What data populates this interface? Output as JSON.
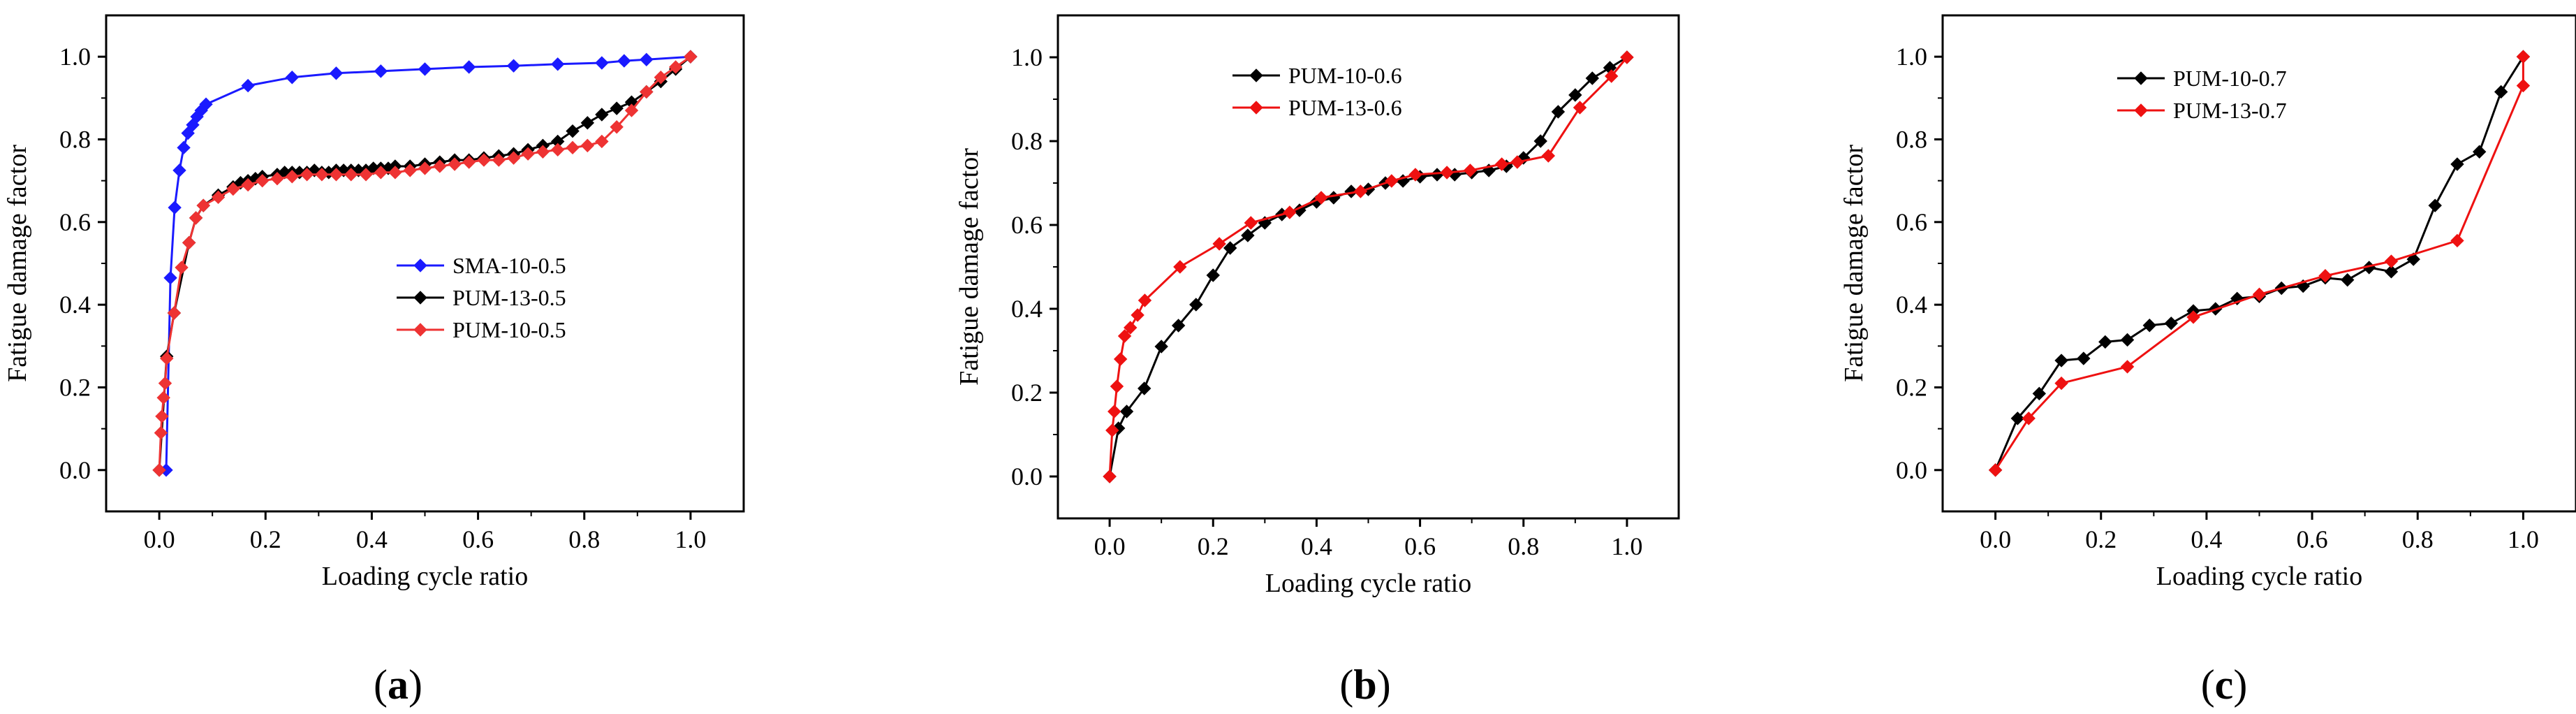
{
  "chart_data": [
    {
      "type": "line",
      "panel": "a",
      "xlabel": "Loading cycle ratio",
      "ylabel": "Fatigue damage factor",
      "xlim": [
        -0.1,
        1.1
      ],
      "ylim": [
        -0.1,
        1.1
      ],
      "xticks": [
        0.0,
        0.2,
        0.4,
        0.6,
        0.8,
        1.0
      ],
      "yticks": [
        0.0,
        0.2,
        0.4,
        0.6,
        0.8,
        1.0
      ],
      "tick_labels_x": [
        "0.0",
        "0.2",
        "0.4",
        "0.6",
        "0.8",
        "1.0"
      ],
      "tick_labels_y": [
        "0.0",
        "0.2",
        "0.4",
        "0.6",
        "0.8",
        "1.0"
      ],
      "legend_position": "center-right",
      "series": [
        {
          "name": "SMA-10-0.5",
          "color": "#1a1aff",
          "x": [
            0.013,
            0.021,
            0.029,
            0.038,
            0.046,
            0.054,
            0.063,
            0.071,
            0.079,
            0.088,
            0.167,
            0.25,
            0.333,
            0.417,
            0.5,
            0.583,
            0.667,
            0.75,
            0.833,
            0.875,
            0.917,
            1.0
          ],
          "y": [
            0.0,
            0.465,
            0.635,
            0.725,
            0.78,
            0.815,
            0.835,
            0.855,
            0.87,
            0.885,
            0.93,
            0.95,
            0.96,
            0.965,
            0.97,
            0.975,
            0.978,
            0.982,
            0.985,
            0.99,
            0.993,
            1.0
          ]
        },
        {
          "name": "PUM-13-0.5",
          "color": "#000000",
          "x": [
            0.0,
            0.014,
            0.028,
            0.056,
            0.069,
            0.083,
            0.111,
            0.139,
            0.153,
            0.167,
            0.181,
            0.194,
            0.222,
            0.236,
            0.25,
            0.264,
            0.278,
            0.292,
            0.306,
            0.319,
            0.333,
            0.347,
            0.361,
            0.375,
            0.389,
            0.403,
            0.417,
            0.431,
            0.444,
            0.472,
            0.5,
            0.528,
            0.556,
            0.583,
            0.611,
            0.639,
            0.667,
            0.694,
            0.722,
            0.75,
            0.778,
            0.806,
            0.833,
            0.861,
            0.889,
            0.917,
            0.944,
            0.972,
            1.0
          ],
          "y": [
            0.0,
            0.275,
            0.38,
            0.55,
            0.61,
            0.64,
            0.665,
            0.685,
            0.695,
            0.7,
            0.705,
            0.71,
            0.715,
            0.72,
            0.72,
            0.72,
            0.72,
            0.725,
            0.72,
            0.72,
            0.725,
            0.725,
            0.725,
            0.725,
            0.725,
            0.73,
            0.73,
            0.73,
            0.735,
            0.735,
            0.74,
            0.745,
            0.75,
            0.75,
            0.755,
            0.76,
            0.765,
            0.775,
            0.785,
            0.795,
            0.82,
            0.84,
            0.86,
            0.875,
            0.89,
            0.915,
            0.94,
            0.97,
            1.0
          ]
        },
        {
          "name": "PUM-10-0.5",
          "color": "#ee3333",
          "x": [
            0.0,
            0.003,
            0.005,
            0.008,
            0.011,
            0.014,
            0.028,
            0.042,
            0.056,
            0.069,
            0.083,
            0.111,
            0.139,
            0.167,
            0.194,
            0.222,
            0.25,
            0.278,
            0.306,
            0.333,
            0.361,
            0.389,
            0.417,
            0.444,
            0.472,
            0.5,
            0.528,
            0.556,
            0.583,
            0.611,
            0.639,
            0.667,
            0.694,
            0.722,
            0.75,
            0.778,
            0.806,
            0.833,
            0.861,
            0.889,
            0.917,
            0.944,
            0.972,
            1.0
          ],
          "y": [
            0.0,
            0.09,
            0.13,
            0.175,
            0.21,
            0.27,
            0.38,
            0.49,
            0.55,
            0.61,
            0.64,
            0.66,
            0.68,
            0.69,
            0.7,
            0.705,
            0.71,
            0.715,
            0.715,
            0.715,
            0.715,
            0.715,
            0.72,
            0.72,
            0.725,
            0.73,
            0.735,
            0.74,
            0.745,
            0.75,
            0.75,
            0.755,
            0.765,
            0.77,
            0.775,
            0.78,
            0.785,
            0.795,
            0.83,
            0.87,
            0.915,
            0.95,
            0.975,
            1.0
          ]
        }
      ]
    },
    {
      "type": "line",
      "panel": "b",
      "xlabel": "Loading cycle ratio",
      "ylabel": "Fatigue damage factor",
      "xlim": [
        -0.1,
        1.1
      ],
      "ylim": [
        -0.1,
        1.1
      ],
      "xticks": [
        0.0,
        0.2,
        0.4,
        0.6,
        0.8,
        1.0
      ],
      "yticks": [
        0.0,
        0.2,
        0.4,
        0.6,
        0.8,
        1.0
      ],
      "tick_labels_x": [
        "0.0",
        "0.2",
        "0.4",
        "0.6",
        "0.8",
        "1.0"
      ],
      "tick_labels_y": [
        "0.0",
        "0.2",
        "0.4",
        "0.6",
        "0.8",
        "1.0"
      ],
      "legend_position": "top-left",
      "series": [
        {
          "name": "PUM-10-0.6",
          "color": "#000000",
          "x": [
            0.0,
            0.017,
            0.033,
            0.067,
            0.1,
            0.133,
            0.167,
            0.2,
            0.233,
            0.267,
            0.3,
            0.333,
            0.367,
            0.4,
            0.433,
            0.467,
            0.5,
            0.533,
            0.567,
            0.6,
            0.633,
            0.667,
            0.7,
            0.733,
            0.767,
            0.8,
            0.833,
            0.867,
            0.9,
            0.933,
            0.967,
            1.0
          ],
          "y": [
            0.0,
            0.115,
            0.155,
            0.21,
            0.31,
            0.36,
            0.41,
            0.48,
            0.545,
            0.575,
            0.605,
            0.625,
            0.635,
            0.655,
            0.665,
            0.68,
            0.685,
            0.7,
            0.705,
            0.715,
            0.72,
            0.72,
            0.725,
            0.73,
            0.74,
            0.76,
            0.8,
            0.87,
            0.91,
            0.95,
            0.975,
            1.0
          ]
        },
        {
          "name": "PUM-13-0.6",
          "color": "#ee1111",
          "x": [
            0.0,
            0.005,
            0.009,
            0.014,
            0.021,
            0.029,
            0.04,
            0.054,
            0.068,
            0.136,
            0.212,
            0.273,
            0.348,
            0.409,
            0.485,
            0.545,
            0.591,
            0.652,
            0.697,
            0.758,
            0.788,
            0.848,
            0.909,
            0.97,
            1.0
          ],
          "y": [
            0.0,
            0.11,
            0.155,
            0.215,
            0.28,
            0.335,
            0.355,
            0.385,
            0.42,
            0.5,
            0.555,
            0.605,
            0.63,
            0.665,
            0.68,
            0.705,
            0.72,
            0.725,
            0.73,
            0.745,
            0.75,
            0.765,
            0.88,
            0.955,
            1.0
          ]
        }
      ]
    },
    {
      "type": "line",
      "panel": "c",
      "xlabel": "Loading cycle ratio",
      "ylabel": "Fatigue damage factor",
      "xlim": [
        -0.1,
        1.1
      ],
      "ylim": [
        -0.1,
        1.1
      ],
      "xticks": [
        0.0,
        0.2,
        0.4,
        0.6,
        0.8,
        1.0
      ],
      "yticks": [
        0.0,
        0.2,
        0.4,
        0.6,
        0.8,
        1.0
      ],
      "tick_labels_x": [
        "0.0",
        "0.2",
        "0.4",
        "0.6",
        "0.8",
        "1.0"
      ],
      "tick_labels_y": [
        "0.0",
        "0.2",
        "0.4",
        "0.6",
        "0.8",
        "1.0"
      ],
      "legend_position": "top-left",
      "series": [
        {
          "name": "PUM-10-0.7",
          "color": "#000000",
          "x": [
            0.0,
            0.042,
            0.083,
            0.125,
            0.167,
            0.208,
            0.25,
            0.292,
            0.333,
            0.375,
            0.417,
            0.458,
            0.5,
            0.542,
            0.583,
            0.625,
            0.667,
            0.708,
            0.75,
            0.792,
            0.833,
            0.875,
            0.917,
            0.958,
            1.0
          ],
          "y": [
            0.0,
            0.125,
            0.185,
            0.265,
            0.27,
            0.31,
            0.315,
            0.35,
            0.355,
            0.385,
            0.39,
            0.415,
            0.42,
            0.44,
            0.445,
            0.465,
            0.46,
            0.49,
            0.48,
            0.51,
            0.64,
            0.74,
            0.77,
            0.915,
            1.0
          ]
        },
        {
          "name": "PUM-13-0.7",
          "color": "#ee1111",
          "x": [
            0.0,
            0.063,
            0.125,
            0.25,
            0.375,
            0.5,
            0.625,
            0.75,
            0.875,
            1.0,
            1.0
          ],
          "y": [
            0.0,
            0.125,
            0.21,
            0.25,
            0.37,
            0.425,
            0.47,
            0.505,
            0.555,
            0.93,
            1.0
          ]
        }
      ]
    }
  ],
  "panel_labels": [
    {
      "open": "(",
      "letter": "a",
      "close": ")"
    },
    {
      "open": "(",
      "letter": "b",
      "close": ")"
    },
    {
      "open": "(",
      "letter": "c",
      "close": ")"
    }
  ]
}
